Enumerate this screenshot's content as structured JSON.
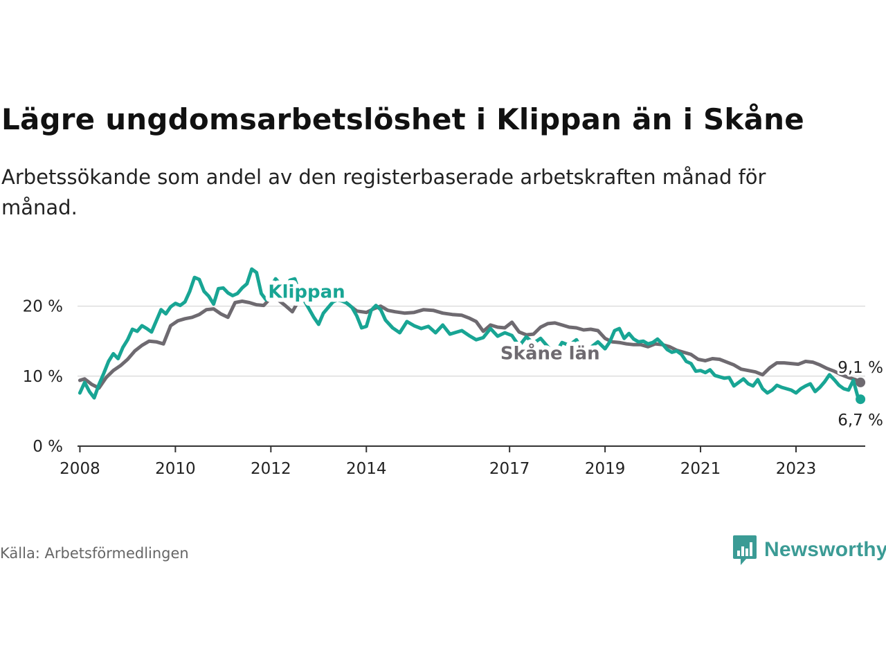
{
  "title": "Lägre ungdomsarbetslöshet i Klippan än i Skåne",
  "subtitle": "Arbetssökande som andel av den registerbaserade arbetskraften månad för månad.",
  "source": "Källa: Arbetsförmedlingen",
  "brand": "Newsworthy",
  "colors": {
    "klippan": "#18a594",
    "skane": "#6e6a70",
    "grid": "#dddddd",
    "axis": "#333333",
    "brand": "#3b9b95"
  },
  "chart_data": {
    "type": "line",
    "title": "Lägre ungdomsarbetslöshet i Klippan än i Skåne",
    "xlabel": "",
    "ylabel": "",
    "xlim": [
      2007.95,
      2024.45
    ],
    "ylim": [
      0,
      25
    ],
    "y_ticks": [
      {
        "value": 0,
        "label": "0 %"
      },
      {
        "value": 10,
        "label": "10 %"
      },
      {
        "value": 20,
        "label": "20 %"
      }
    ],
    "x_ticks": [
      {
        "value": 2008,
        "label": "2008"
      },
      {
        "value": 2010,
        "label": "2010"
      },
      {
        "value": 2012,
        "label": "2012"
      },
      {
        "value": 2014,
        "label": "2014"
      },
      {
        "value": 2017,
        "label": "2017"
      },
      {
        "value": 2019,
        "label": "2019"
      },
      {
        "value": 2021,
        "label": "2021"
      },
      {
        "value": 2023,
        "label": "2023"
      }
    ],
    "series": [
      {
        "name": "Skåne län",
        "color": "#6e6a70",
        "end_label": "9,1 %",
        "label_at": [
          2017.85,
          12.4
        ],
        "points": [
          [
            2008.0,
            9.4
          ],
          [
            2008.1,
            9.6
          ],
          [
            2008.25,
            8.8
          ],
          [
            2008.4,
            8.3
          ],
          [
            2008.55,
            9.8
          ],
          [
            2008.7,
            10.8
          ],
          [
            2008.85,
            11.5
          ],
          [
            2009.0,
            12.4
          ],
          [
            2009.15,
            13.6
          ],
          [
            2009.3,
            14.4
          ],
          [
            2009.45,
            15.0
          ],
          [
            2009.6,
            14.9
          ],
          [
            2009.75,
            14.6
          ],
          [
            2009.9,
            17.2
          ],
          [
            2010.05,
            17.9
          ],
          [
            2010.2,
            18.2
          ],
          [
            2010.35,
            18.4
          ],
          [
            2010.5,
            18.8
          ],
          [
            2010.65,
            19.5
          ],
          [
            2010.8,
            19.6
          ],
          [
            2010.95,
            18.9
          ],
          [
            2011.1,
            18.4
          ],
          [
            2011.25,
            20.5
          ],
          [
            2011.4,
            20.7
          ],
          [
            2011.55,
            20.5
          ],
          [
            2011.7,
            20.2
          ],
          [
            2011.85,
            20.1
          ],
          [
            2012.0,
            21.2
          ],
          [
            2012.15,
            20.9
          ],
          [
            2012.3,
            20.1
          ],
          [
            2012.45,
            19.2
          ],
          [
            2012.6,
            21.0
          ],
          [
            2012.75,
            21.3
          ],
          [
            2012.9,
            21.6
          ],
          [
            2013.05,
            21.7
          ],
          [
            2013.2,
            21.8
          ],
          [
            2013.35,
            21.5
          ],
          [
            2013.5,
            20.9
          ],
          [
            2013.65,
            20.1
          ],
          [
            2013.8,
            19.3
          ],
          [
            2014.0,
            19.1
          ],
          [
            2014.15,
            19.6
          ],
          [
            2014.3,
            20.0
          ],
          [
            2014.45,
            19.4
          ],
          [
            2014.6,
            19.2
          ],
          [
            2014.8,
            19.0
          ],
          [
            2015.0,
            19.1
          ],
          [
            2015.2,
            19.5
          ],
          [
            2015.4,
            19.4
          ],
          [
            2015.6,
            19.0
          ],
          [
            2015.8,
            18.8
          ],
          [
            2016.0,
            18.7
          ],
          [
            2016.15,
            18.3
          ],
          [
            2016.3,
            17.8
          ],
          [
            2016.45,
            16.4
          ],
          [
            2016.6,
            17.3
          ],
          [
            2016.75,
            17.0
          ],
          [
            2016.9,
            16.9
          ],
          [
            2017.05,
            17.7
          ],
          [
            2017.2,
            16.3
          ],
          [
            2017.35,
            15.9
          ],
          [
            2017.5,
            16.0
          ],
          [
            2017.65,
            17.0
          ],
          [
            2017.8,
            17.5
          ],
          [
            2017.95,
            17.6
          ],
          [
            2018.1,
            17.3
          ],
          [
            2018.25,
            17.0
          ],
          [
            2018.4,
            16.9
          ],
          [
            2018.55,
            16.6
          ],
          [
            2018.7,
            16.7
          ],
          [
            2018.85,
            16.5
          ],
          [
            2019.0,
            15.4
          ],
          [
            2019.15,
            14.9
          ],
          [
            2019.3,
            14.8
          ],
          [
            2019.45,
            14.6
          ],
          [
            2019.6,
            14.5
          ],
          [
            2019.75,
            14.5
          ],
          [
            2019.9,
            14.2
          ],
          [
            2020.05,
            14.6
          ],
          [
            2020.2,
            14.5
          ],
          [
            2020.35,
            14.2
          ],
          [
            2020.5,
            13.7
          ],
          [
            2020.65,
            13.4
          ],
          [
            2020.8,
            13.1
          ],
          [
            2020.95,
            12.4
          ],
          [
            2021.1,
            12.2
          ],
          [
            2021.25,
            12.5
          ],
          [
            2021.4,
            12.4
          ],
          [
            2021.55,
            12.0
          ],
          [
            2021.7,
            11.6
          ],
          [
            2021.85,
            11.0
          ],
          [
            2022.0,
            10.8
          ],
          [
            2022.15,
            10.6
          ],
          [
            2022.3,
            10.2
          ],
          [
            2022.45,
            11.2
          ],
          [
            2022.6,
            11.9
          ],
          [
            2022.75,
            11.9
          ],
          [
            2022.9,
            11.8
          ],
          [
            2023.05,
            11.7
          ],
          [
            2023.2,
            12.1
          ],
          [
            2023.35,
            12.0
          ],
          [
            2023.5,
            11.6
          ],
          [
            2023.65,
            11.1
          ],
          [
            2023.8,
            10.7
          ],
          [
            2023.95,
            10.2
          ],
          [
            2024.1,
            9.8
          ],
          [
            2024.25,
            9.5
          ],
          [
            2024.35,
            9.1
          ]
        ]
      },
      {
        "name": "Klippan",
        "color": "#18a594",
        "end_label": "6,7 %",
        "label_at": [
          2012.75,
          21.2
        ],
        "points": [
          [
            2008.0,
            7.6
          ],
          [
            2008.1,
            9.1
          ],
          [
            2008.2,
            7.8
          ],
          [
            2008.3,
            6.9
          ],
          [
            2008.4,
            8.8
          ],
          [
            2008.5,
            10.4
          ],
          [
            2008.6,
            12.1
          ],
          [
            2008.7,
            13.2
          ],
          [
            2008.8,
            12.5
          ],
          [
            2008.9,
            14.1
          ],
          [
            2009.0,
            15.2
          ],
          [
            2009.1,
            16.7
          ],
          [
            2009.2,
            16.4
          ],
          [
            2009.3,
            17.2
          ],
          [
            2009.4,
            16.8
          ],
          [
            2009.5,
            16.3
          ],
          [
            2009.6,
            17.9
          ],
          [
            2009.7,
            19.5
          ],
          [
            2009.8,
            18.9
          ],
          [
            2009.9,
            19.9
          ],
          [
            2010.0,
            20.4
          ],
          [
            2010.1,
            20.1
          ],
          [
            2010.2,
            20.6
          ],
          [
            2010.3,
            22.1
          ],
          [
            2010.4,
            24.1
          ],
          [
            2010.5,
            23.8
          ],
          [
            2010.6,
            22.1
          ],
          [
            2010.7,
            21.4
          ],
          [
            2010.8,
            20.3
          ],
          [
            2010.9,
            22.5
          ],
          [
            2011.0,
            22.6
          ],
          [
            2011.1,
            21.9
          ],
          [
            2011.2,
            21.5
          ],
          [
            2011.3,
            21.8
          ],
          [
            2011.4,
            22.6
          ],
          [
            2011.5,
            23.2
          ],
          [
            2011.6,
            25.3
          ],
          [
            2011.7,
            24.8
          ],
          [
            2011.8,
            21.8
          ],
          [
            2011.9,
            20.9
          ],
          [
            2012.0,
            22.8
          ],
          [
            2012.1,
            23.9
          ],
          [
            2012.2,
            23.1
          ],
          [
            2012.3,
            22.6
          ],
          [
            2012.4,
            23.7
          ],
          [
            2012.5,
            23.9
          ],
          [
            2012.6,
            21.9
          ],
          [
            2012.7,
            20.8
          ],
          [
            2012.8,
            19.6
          ],
          [
            2012.9,
            18.4
          ],
          [
            2013.0,
            17.4
          ],
          [
            2013.1,
            19.0
          ],
          [
            2013.2,
            19.8
          ],
          [
            2013.3,
            20.6
          ],
          [
            2013.4,
            20.9
          ],
          [
            2013.5,
            20.7
          ],
          [
            2013.6,
            20.4
          ],
          [
            2013.7,
            19.8
          ],
          [
            2013.8,
            18.6
          ],
          [
            2013.9,
            16.9
          ],
          [
            2014.0,
            17.1
          ],
          [
            2014.1,
            19.4
          ],
          [
            2014.2,
            20.1
          ],
          [
            2014.3,
            19.5
          ],
          [
            2014.4,
            18.0
          ],
          [
            2014.55,
            16.9
          ],
          [
            2014.7,
            16.2
          ],
          [
            2014.85,
            17.8
          ],
          [
            2015.0,
            17.2
          ],
          [
            2015.15,
            16.8
          ],
          [
            2015.3,
            17.1
          ],
          [
            2015.45,
            16.2
          ],
          [
            2015.6,
            17.3
          ],
          [
            2015.75,
            16.0
          ],
          [
            2015.9,
            16.3
          ],
          [
            2016.0,
            16.5
          ],
          [
            2016.15,
            15.8
          ],
          [
            2016.3,
            15.2
          ],
          [
            2016.45,
            15.5
          ],
          [
            2016.6,
            16.8
          ],
          [
            2016.75,
            15.7
          ],
          [
            2016.9,
            16.2
          ],
          [
            2017.05,
            15.8
          ],
          [
            2017.2,
            14.3
          ],
          [
            2017.35,
            15.6
          ],
          [
            2017.5,
            14.7
          ],
          [
            2017.65,
            15.4
          ],
          [
            2017.8,
            14.2
          ],
          [
            2017.95,
            13.2
          ],
          [
            2018.1,
            14.8
          ],
          [
            2018.25,
            14.4
          ],
          [
            2018.4,
            15.2
          ],
          [
            2018.55,
            13.5
          ],
          [
            2018.7,
            14.1
          ],
          [
            2018.85,
            14.9
          ],
          [
            2019.0,
            13.9
          ],
          [
            2019.1,
            14.9
          ],
          [
            2019.2,
            16.5
          ],
          [
            2019.3,
            16.8
          ],
          [
            2019.4,
            15.4
          ],
          [
            2019.5,
            16.1
          ],
          [
            2019.6,
            15.3
          ],
          [
            2019.7,
            14.9
          ],
          [
            2019.8,
            15.0
          ],
          [
            2019.9,
            14.6
          ],
          [
            2020.0,
            14.8
          ],
          [
            2020.1,
            15.3
          ],
          [
            2020.2,
            14.6
          ],
          [
            2020.3,
            13.8
          ],
          [
            2020.4,
            13.4
          ],
          [
            2020.5,
            13.6
          ],
          [
            2020.6,
            13.1
          ],
          [
            2020.7,
            12.1
          ],
          [
            2020.8,
            11.8
          ],
          [
            2020.9,
            10.7
          ],
          [
            2021.0,
            10.8
          ],
          [
            2021.1,
            10.5
          ],
          [
            2021.2,
            10.9
          ],
          [
            2021.3,
            10.1
          ],
          [
            2021.4,
            9.9
          ],
          [
            2021.5,
            9.7
          ],
          [
            2021.6,
            9.8
          ],
          [
            2021.7,
            8.6
          ],
          [
            2021.8,
            9.1
          ],
          [
            2021.9,
            9.6
          ],
          [
            2022.0,
            8.9
          ],
          [
            2022.1,
            8.6
          ],
          [
            2022.2,
            9.5
          ],
          [
            2022.3,
            8.2
          ],
          [
            2022.4,
            7.6
          ],
          [
            2022.5,
            8.0
          ],
          [
            2022.6,
            8.7
          ],
          [
            2022.7,
            8.4
          ],
          [
            2022.8,
            8.2
          ],
          [
            2022.9,
            8.0
          ],
          [
            2023.0,
            7.6
          ],
          [
            2023.1,
            8.2
          ],
          [
            2023.2,
            8.6
          ],
          [
            2023.3,
            8.9
          ],
          [
            2023.4,
            7.8
          ],
          [
            2023.5,
            8.4
          ],
          [
            2023.6,
            9.2
          ],
          [
            2023.7,
            10.2
          ],
          [
            2023.8,
            9.5
          ],
          [
            2023.9,
            8.7
          ],
          [
            2024.0,
            8.2
          ],
          [
            2024.1,
            8.0
          ],
          [
            2024.2,
            9.4
          ],
          [
            2024.3,
            6.9
          ],
          [
            2024.35,
            6.7
          ]
        ]
      }
    ]
  }
}
